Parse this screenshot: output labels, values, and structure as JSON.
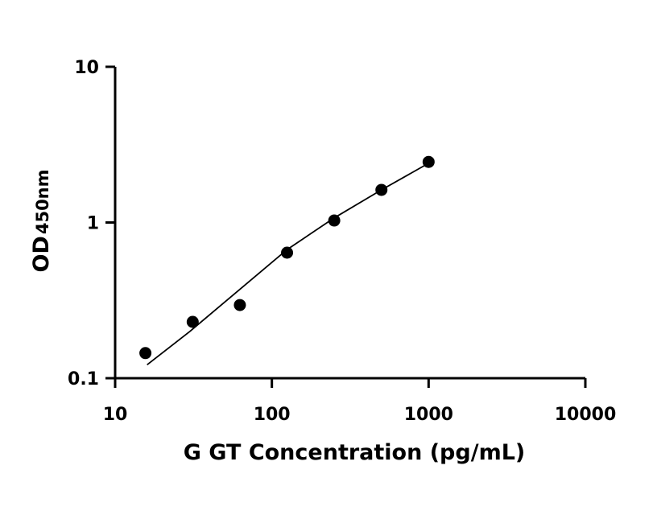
{
  "chart_data": {
    "type": "scatter",
    "title": "",
    "xlabel": "G GT Concentration (pg/mL)",
    "ylabel": "OD",
    "ylabel_subscript": "450nm",
    "x_scale": "log",
    "y_scale": "log",
    "xlim": [
      10,
      10000
    ],
    "ylim": [
      0.1,
      10
    ],
    "x_ticks": [
      10,
      100,
      1000,
      10000
    ],
    "x_tick_labels": [
      "10",
      "100",
      "1000",
      "10000"
    ],
    "y_ticks": [
      0.1,
      1,
      10
    ],
    "y_tick_labels": [
      "0.1",
      "1",
      "10"
    ],
    "grid": false,
    "series": [
      {
        "x": [
          15.6,
          31.25,
          62.5,
          125,
          250,
          500,
          1000
        ],
        "y": [
          0.145,
          0.23,
          0.295,
          0.64,
          1.03,
          1.62,
          2.45
        ]
      }
    ],
    "fit_curve": {
      "x": [
        16,
        30,
        60,
        125,
        250,
        500,
        1000
      ],
      "y": [
        0.122,
        0.2,
        0.36,
        0.67,
        1.07,
        1.62,
        2.4
      ]
    }
  }
}
